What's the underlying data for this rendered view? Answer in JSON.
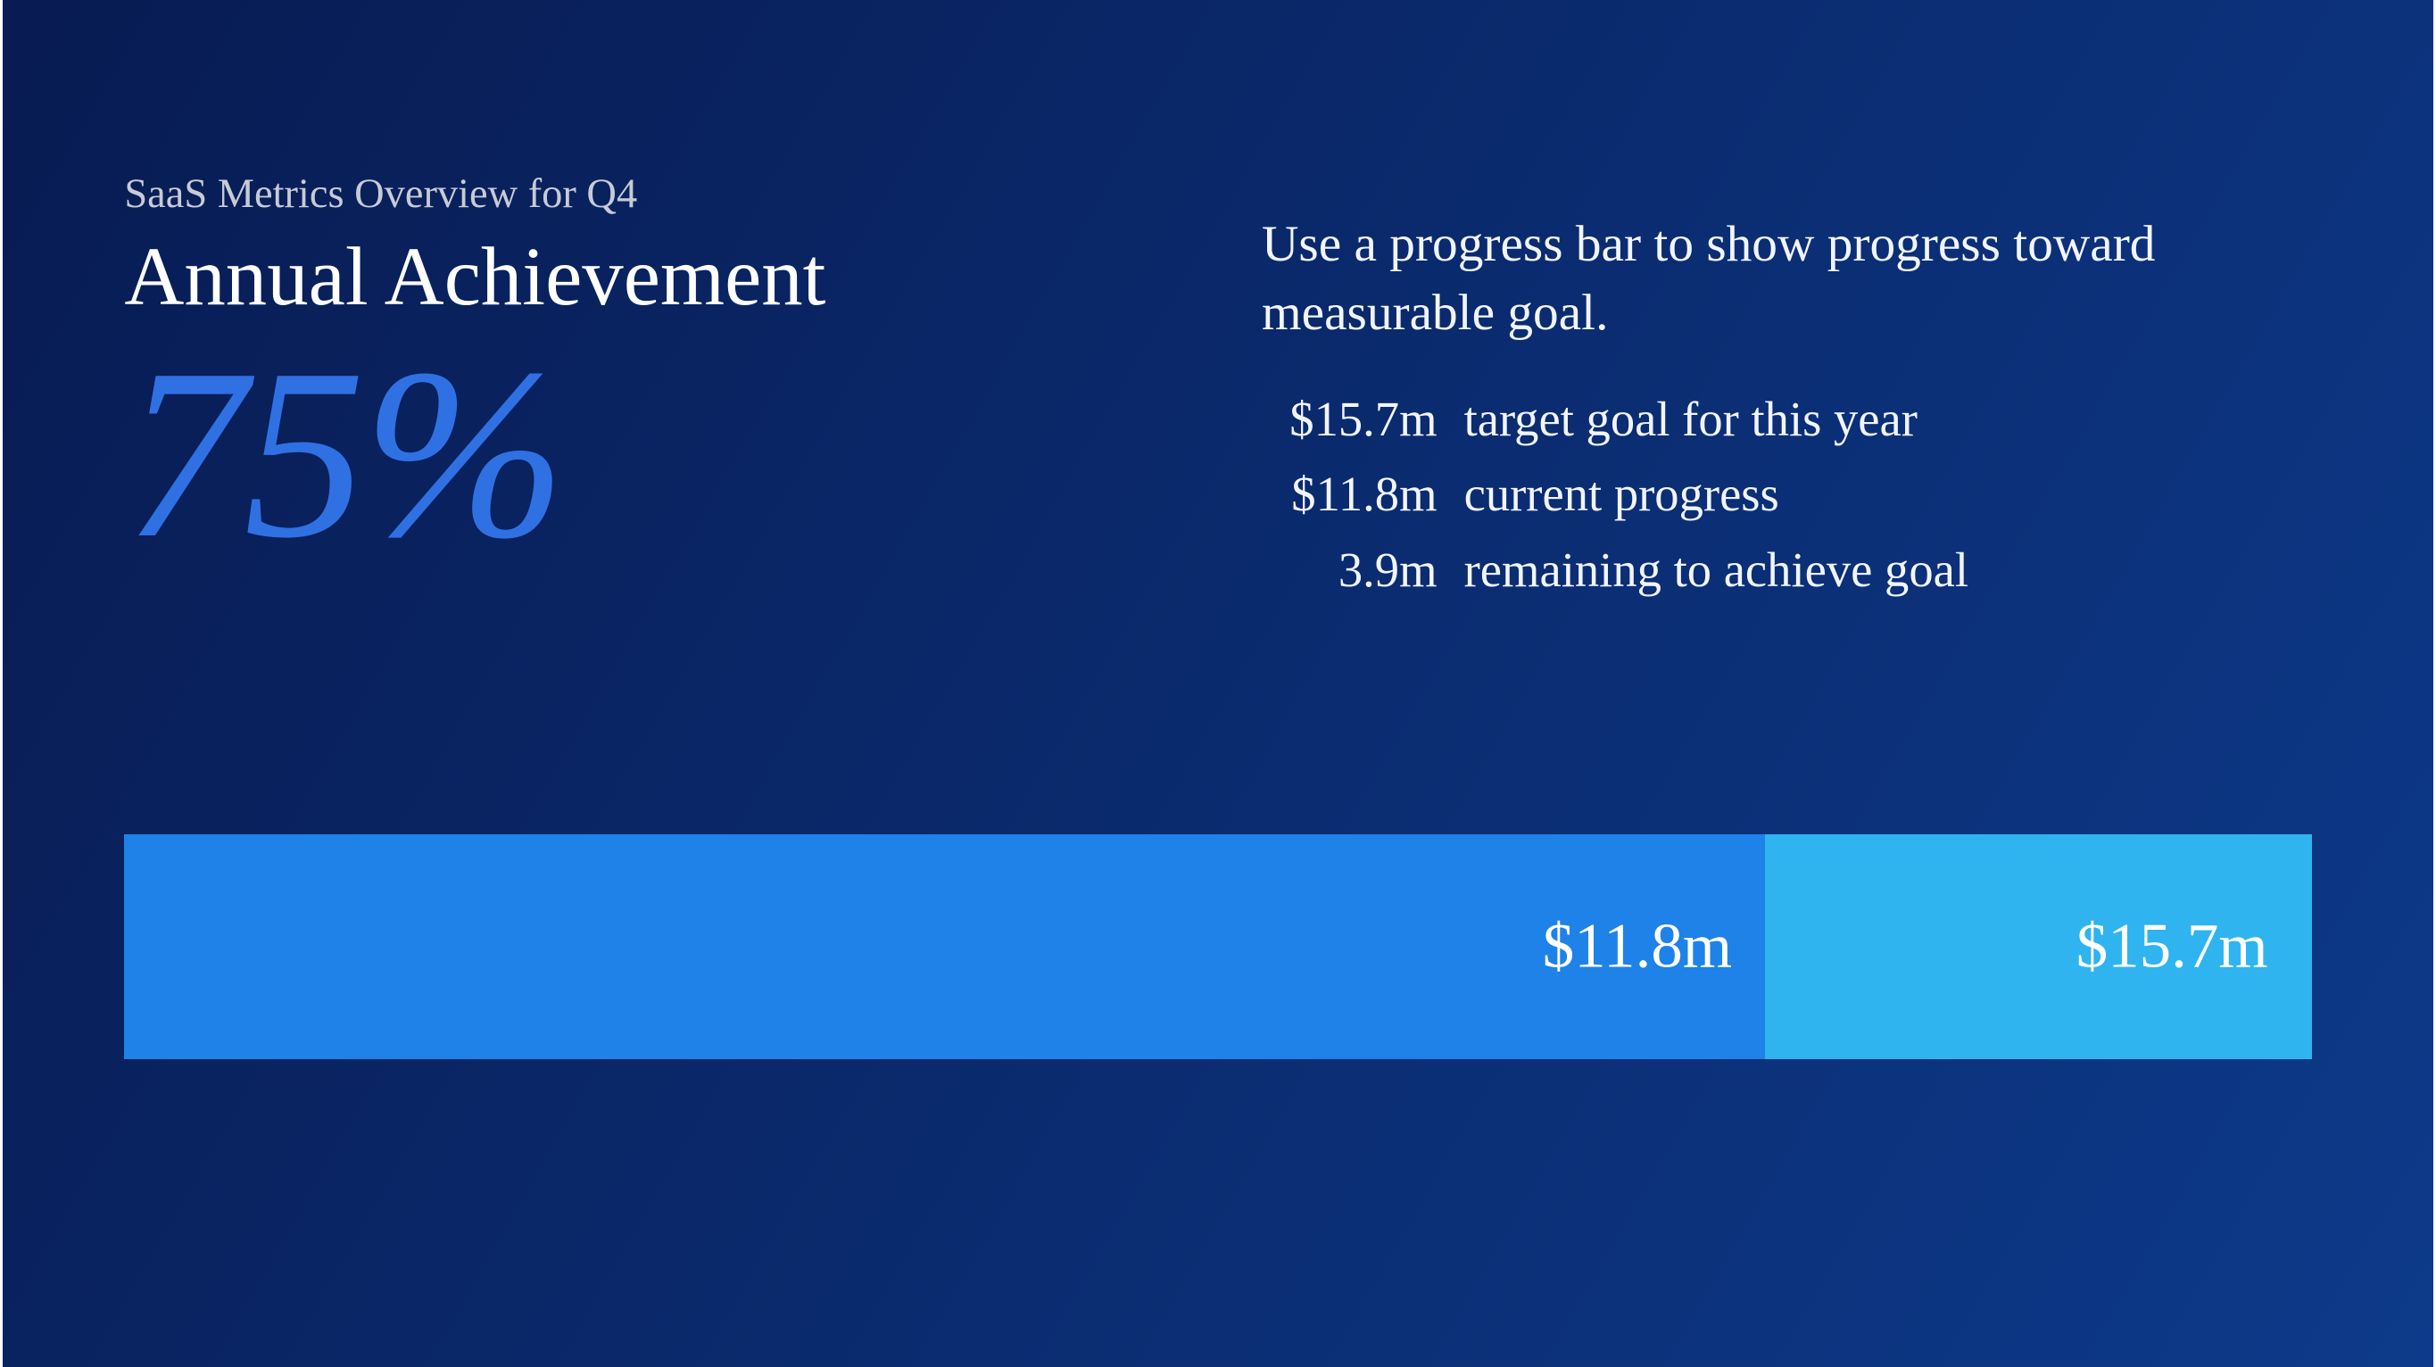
{
  "background": {
    "gradient_from": "#081b52",
    "gradient_to": "#0d3a8a",
    "gradient_angle_deg": 120
  },
  "header": {
    "subtitle": "SaaS Metrics Overview for Q4",
    "subtitle_color": "#c7cbd6",
    "subtitle_fontsize_pt": 20,
    "title": "Annual Achievement",
    "title_color": "#ffffff",
    "title_fontsize_pt": 40
  },
  "big_number": {
    "text": "75%",
    "color": "#2f71e3",
    "font_style": "italic",
    "fontsize_pt": 120
  },
  "description": {
    "text": "Use a progress bar to show progress toward measurable goal.",
    "color": "#f2f5ff",
    "fontsize_pt": 24
  },
  "stats": {
    "rows": [
      {
        "value": "$15.7m",
        "label": "target goal for this year"
      },
      {
        "value": "$11.8m",
        "label": "current progress"
      },
      {
        "value": "3.9m",
        "label": "remaining to achieve goal"
      }
    ],
    "color": "#f2f5ff",
    "fontsize_pt": 22
  },
  "progress_bar": {
    "type": "bar",
    "percent": 75,
    "fill_color": "#1e82e8",
    "track_color": "#2fb4f0",
    "fill_label": "$11.8m",
    "track_label": "$15.7m",
    "label_color": "#ffffff",
    "label_fontsize_pt": 30,
    "height_pct_of_slide": 16.5
  }
}
